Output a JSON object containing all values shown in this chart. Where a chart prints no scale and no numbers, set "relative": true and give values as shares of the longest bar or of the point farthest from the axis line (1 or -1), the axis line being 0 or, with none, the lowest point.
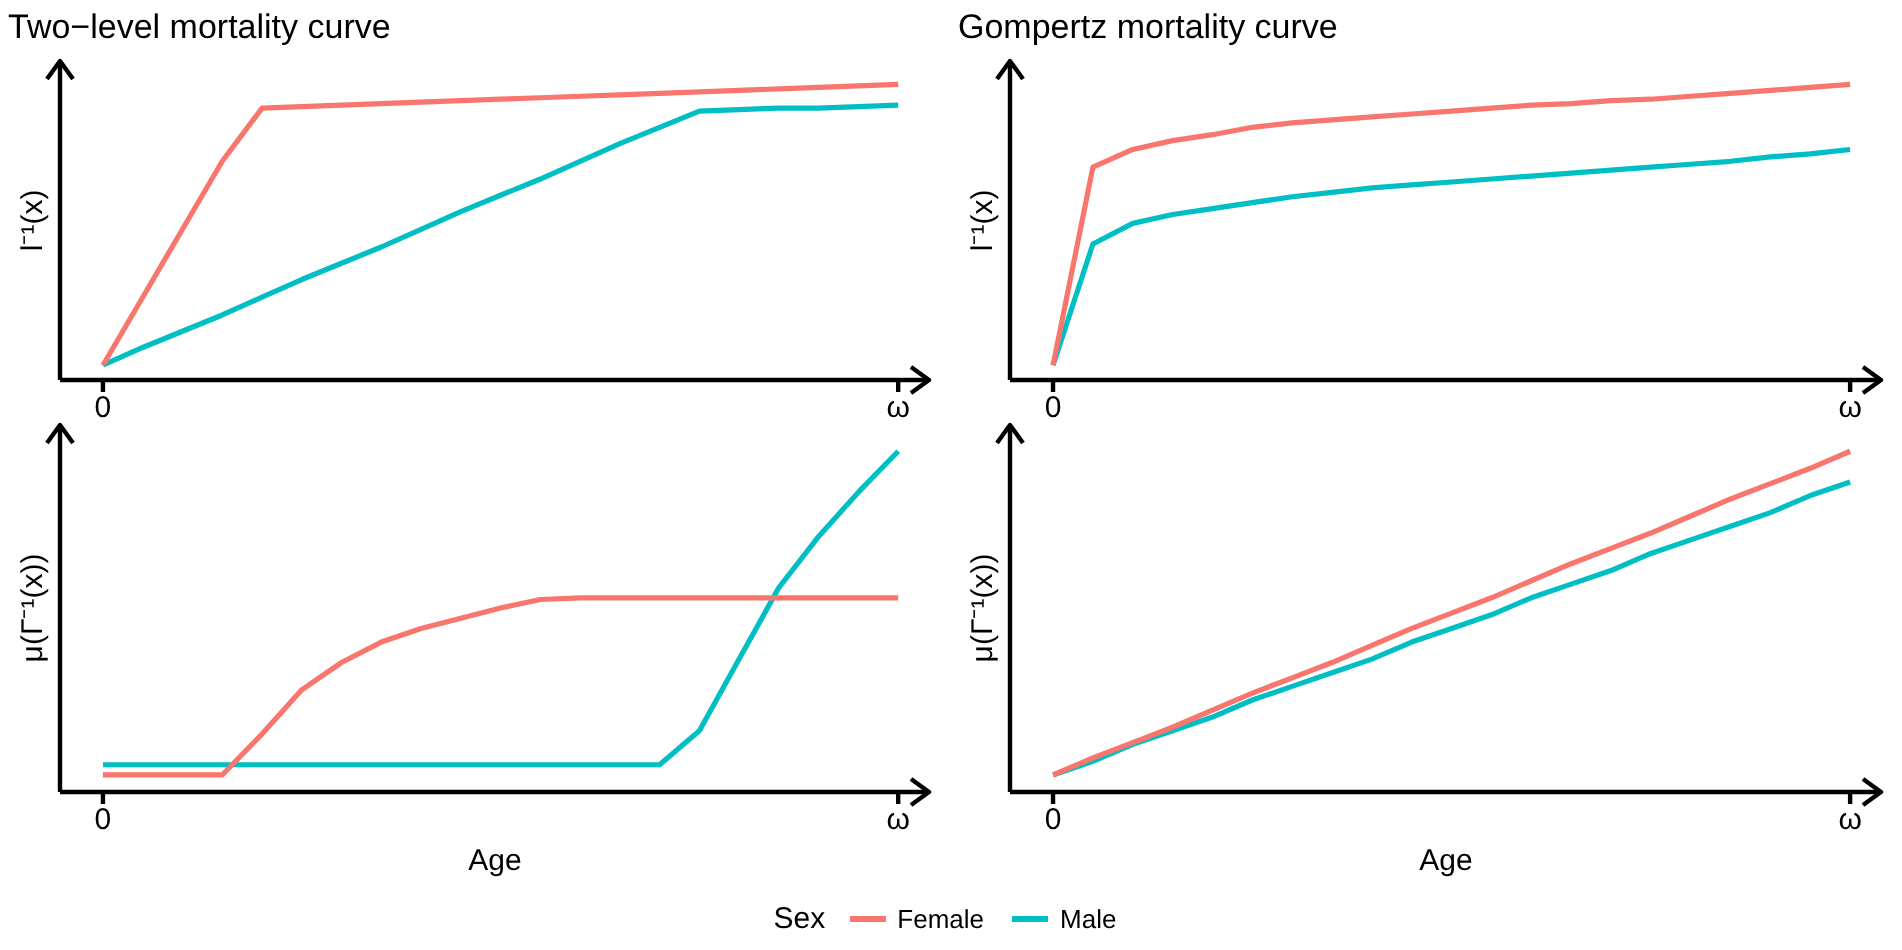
{
  "chart_data": [
    {
      "type": "line",
      "title": "Two−level mortality curve",
      "ylabel": "l⁻¹(x)",
      "relative": true,
      "marker": "none",
      "line_style": "solid",
      "tick_labels": "x",
      "categories": [
        "0",
        null,
        null,
        null,
        null,
        null,
        null,
        null,
        null,
        null,
        null,
        null,
        null,
        null,
        null,
        null,
        null,
        null,
        null,
        null,
        "ω"
      ],
      "series": [
        {
          "color": "#f8766d",
          "values": [
            0.05,
            0.28,
            0.51,
            0.74,
            0.92,
            0.925,
            0.93,
            0.935,
            0.94,
            0.945,
            0.95,
            0.955,
            0.96,
            0.965,
            0.97,
            0.975,
            0.98,
            0.985,
            0.99,
            0.995,
            1
          ]
        },
        {
          "color": "#00bfc4",
          "values": [
            0.05,
            0.11,
            0.165,
            0.22,
            0.28,
            0.34,
            0.395,
            0.45,
            0.51,
            0.57,
            0.625,
            0.68,
            0.74,
            0.8,
            0.855,
            0.91,
            0.915,
            0.92,
            0.92,
            0.925,
            0.93
          ]
        }
      ]
    },
    {
      "type": "line",
      "title": "Gompertz mortality curve",
      "ylabel": "l⁻¹(x)",
      "relative": true,
      "marker": "none",
      "line_style": "solid",
      "tick_labels": "x",
      "categories": [
        "0",
        null,
        null,
        null,
        null,
        null,
        null,
        null,
        null,
        null,
        null,
        null,
        null,
        null,
        null,
        null,
        null,
        null,
        null,
        null,
        "ω"
      ],
      "series": [
        {
          "color": "#f8766d",
          "values": [
            0.05,
            0.72,
            0.78,
            0.81,
            0.83,
            0.855,
            0.87,
            0.88,
            0.89,
            0.9,
            0.91,
            0.92,
            0.93,
            0.935,
            0.945,
            0.95,
            0.96,
            0.97,
            0.98,
            0.99,
            1
          ]
        },
        {
          "color": "#00bfc4",
          "values": [
            0.05,
            0.46,
            0.53,
            0.56,
            0.58,
            0.6,
            0.62,
            0.635,
            0.65,
            0.66,
            0.67,
            0.68,
            0.69,
            0.7,
            0.71,
            0.72,
            0.73,
            0.74,
            0.755,
            0.765,
            0.78
          ]
        }
      ]
    },
    {
      "type": "line",
      "xlabel": "Age",
      "ylabel": "μ(Γ⁻¹(x))",
      "relative": true,
      "marker": "none",
      "line_style": "solid",
      "tick_labels": "x",
      "categories": [
        "0",
        null,
        null,
        null,
        null,
        null,
        null,
        null,
        null,
        null,
        null,
        null,
        null,
        null,
        null,
        null,
        null,
        null,
        null,
        null,
        "ω"
      ],
      "series": [
        {
          "color": "#f8766d",
          "values": [
            0.05,
            0.05,
            0.05,
            0.05,
            0.17,
            0.3,
            0.38,
            0.44,
            0.48,
            0.51,
            0.54,
            0.565,
            0.57,
            0.57,
            0.57,
            0.57,
            0.57,
            0.57,
            0.57,
            0.57,
            0.57
          ]
        },
        {
          "color": "#00bfc4",
          "values": [
            0.08,
            0.08,
            0.08,
            0.08,
            0.08,
            0.08,
            0.08,
            0.08,
            0.08,
            0.08,
            0.08,
            0.08,
            0.08,
            0.08,
            0.08,
            0.18,
            0.39,
            0.6,
            0.75,
            0.88,
            1
          ]
        }
      ]
    },
    {
      "type": "line",
      "xlabel": "Age",
      "ylabel": "μ(Γ⁻¹(x))",
      "relative": true,
      "marker": "none",
      "line_style": "solid",
      "tick_labels": "x",
      "legend": "bottom",
      "legend_title": "Sex",
      "categories": [
        "0",
        null,
        null,
        null,
        null,
        null,
        null,
        null,
        null,
        null,
        null,
        null,
        null,
        null,
        null,
        null,
        null,
        null,
        null,
        null,
        "ω"
      ],
      "series": [
        {
          "name": "Female",
          "color": "#f8766d",
          "values": [
            0.05,
            0.1,
            0.145,
            0.19,
            0.24,
            0.29,
            0.335,
            0.38,
            0.43,
            0.48,
            0.525,
            0.57,
            0.62,
            0.67,
            0.715,
            0.76,
            0.81,
            0.86,
            0.905,
            0.95,
            1
          ]
        },
        {
          "name": "Male",
          "color": "#00bfc4",
          "values": [
            0.05,
            0.09,
            0.14,
            0.18,
            0.22,
            0.27,
            0.31,
            0.35,
            0.39,
            0.44,
            0.48,
            0.52,
            0.57,
            0.61,
            0.65,
            0.7,
            0.74,
            0.78,
            0.82,
            0.87,
            0.91
          ]
        }
      ]
    }
  ]
}
